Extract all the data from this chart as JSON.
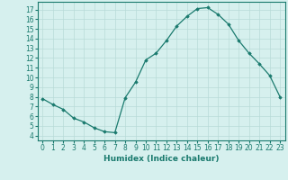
{
  "title": "",
  "xlabel": "Humidex (Indice chaleur)",
  "ylabel": "",
  "x": [
    0,
    1,
    2,
    3,
    4,
    5,
    6,
    7,
    8,
    9,
    10,
    11,
    12,
    13,
    14,
    15,
    16,
    17,
    18,
    19,
    20,
    21,
    22,
    23
  ],
  "y": [
    7.8,
    7.2,
    6.7,
    5.8,
    5.4,
    4.8,
    4.4,
    4.3,
    7.9,
    9.5,
    11.8,
    12.5,
    13.8,
    15.3,
    16.3,
    17.1,
    17.2,
    16.5,
    15.5,
    13.8,
    12.5,
    11.4,
    10.2,
    8.0
  ],
  "line_color": "#1a7a6e",
  "marker": "D",
  "marker_size": 1.8,
  "bg_color": "#d6f0ee",
  "grid_color": "#b8dbd8",
  "axis_color": "#1a7a6e",
  "tick_color": "#1a7a6e",
  "label_color": "#1a7a6e",
  "ylim": [
    3.5,
    17.8
  ],
  "xlim": [
    -0.5,
    23.5
  ],
  "yticks": [
    4,
    5,
    6,
    7,
    8,
    9,
    10,
    11,
    12,
    13,
    14,
    15,
    16,
    17
  ],
  "xticks": [
    0,
    1,
    2,
    3,
    4,
    5,
    6,
    7,
    8,
    9,
    10,
    11,
    12,
    13,
    14,
    15,
    16,
    17,
    18,
    19,
    20,
    21,
    22,
    23
  ],
  "tick_fontsize": 5.5,
  "xlabel_fontsize": 6.5,
  "linewidth": 0.9
}
